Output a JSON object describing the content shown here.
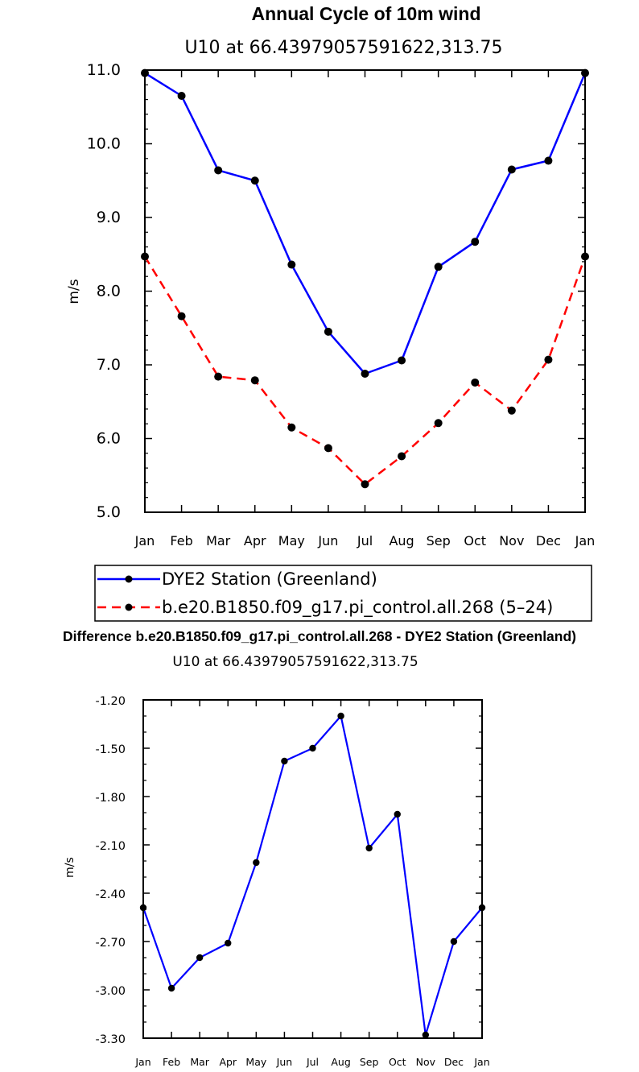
{
  "chart_data": [
    {
      "type": "line",
      "title": "Annual Cycle of 10m wind",
      "subtitle": "U10 at 66.43979057591622,313.75",
      "xlabel": "",
      "ylabel": "m/s",
      "categories": [
        "Jan",
        "Feb",
        "Mar",
        "Apr",
        "May",
        "Jun",
        "Jul",
        "Aug",
        "Sep",
        "Oct",
        "Nov",
        "Dec",
        "Jan"
      ],
      "ylim": [
        5.0,
        11.0
      ],
      "yticks": [
        "5.0",
        "6.0",
        "7.0",
        "8.0",
        "9.0",
        "10.0",
        "11.0"
      ],
      "legend_position": "below",
      "series": [
        {
          "name": "DYE2 Station (Greenland)",
          "color": "#0000ff",
          "dash": "solid",
          "values": [
            10.96,
            10.65,
            9.64,
            9.5,
            8.36,
            7.45,
            6.88,
            7.06,
            8.33,
            8.67,
            9.65,
            9.77,
            10.96
          ]
        },
        {
          "name": "b.e20.B1850.f09_g17.pi_control.all.268 (5–24)",
          "color": "#ff0000",
          "dash": "dashed",
          "values": [
            8.47,
            7.66,
            6.84,
            6.79,
            6.15,
            5.87,
            5.38,
            5.76,
            6.21,
            6.76,
            6.38,
            7.07,
            8.47
          ]
        }
      ]
    },
    {
      "type": "line",
      "title": "Difference b.e20.B1850.f09_g17.pi_control.all.268 - DYE2 Station (Greenland)",
      "subtitle": "U10 at 66.43979057591622,313.75",
      "xlabel": "",
      "ylabel": "m/s",
      "categories": [
        "Jan",
        "Feb",
        "Mar",
        "Apr",
        "May",
        "Jun",
        "Jul",
        "Aug",
        "Sep",
        "Oct",
        "Nov",
        "Dec",
        "Jan"
      ],
      "ylim": [
        -3.3,
        -1.2
      ],
      "yticks": [
        "-3.30",
        "-3.00",
        "-2.70",
        "-2.40",
        "-2.10",
        "-1.80",
        "-1.50",
        "-1.20"
      ],
      "series": [
        {
          "name": "Difference",
          "color": "#0000ff",
          "dash": "solid",
          "values": [
            -2.49,
            -2.99,
            -2.8,
            -2.71,
            -2.21,
            -1.58,
            -1.5,
            -1.3,
            -2.12,
            -1.91,
            -3.28,
            -2.7,
            -2.49
          ]
        }
      ]
    }
  ]
}
